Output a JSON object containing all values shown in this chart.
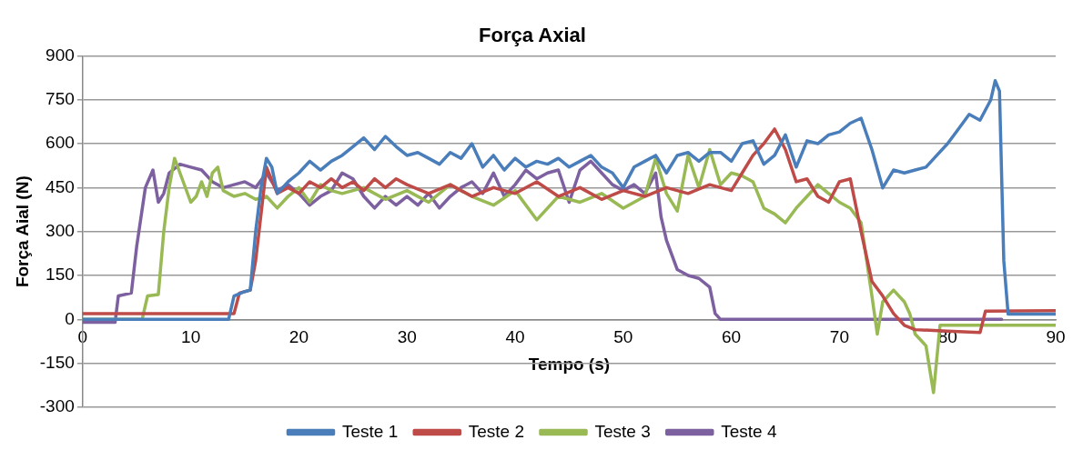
{
  "chart_data": {
    "type": "line",
    "title": "Força Axial",
    "xlabel": "Tempo (s)",
    "ylabel": "Força Aial (N)",
    "xlim": [
      0,
      90
    ],
    "xticks": [
      0,
      10,
      20,
      30,
      40,
      50,
      60,
      70,
      80,
      90
    ],
    "ylim": [
      -300,
      900
    ],
    "yticks": [
      -300,
      -150,
      0,
      150,
      300,
      450,
      600,
      750,
      900
    ],
    "grid": "y",
    "legend": "bottom",
    "marker": "none",
    "line_style": "solid",
    "series": [
      {
        "name": "Teste 1",
        "color": "#4a7ebb",
        "x": [
          0,
          13.5,
          14,
          15,
          15.5,
          16,
          16.5,
          17,
          17.5,
          18,
          19,
          20,
          21,
          22,
          23,
          24,
          25,
          26,
          27,
          28,
          29,
          30,
          31,
          32,
          33,
          34,
          35,
          36,
          37,
          38,
          39,
          40,
          41,
          42,
          43,
          44,
          45,
          46,
          47,
          48,
          49,
          50,
          51,
          52,
          53,
          54,
          55,
          56,
          57,
          58,
          59,
          60,
          61,
          62,
          63,
          64,
          65,
          66,
          67,
          68,
          69,
          70,
          71,
          72,
          73,
          74,
          75,
          76,
          77,
          78,
          79,
          80,
          81,
          82,
          83,
          84,
          84.4,
          84.8,
          85.2,
          85.6,
          90
        ],
        "values": [
          0,
          0,
          80,
          95,
          100,
          300,
          450,
          550,
          520,
          430,
          470,
          500,
          540,
          510,
          540,
          560,
          590,
          620,
          580,
          625,
          590,
          560,
          570,
          550,
          530,
          570,
          550,
          600,
          520,
          560,
          510,
          550,
          520,
          540,
          530,
          550,
          520,
          540,
          560,
          520,
          500,
          450,
          520,
          540,
          560,
          500,
          560,
          570,
          540,
          570,
          570,
          540,
          600,
          610,
          530,
          560,
          630,
          520,
          610,
          600,
          630,
          640,
          670,
          687,
          580,
          449,
          510,
          500,
          510,
          520,
          560,
          600,
          650,
          700,
          680,
          750,
          815,
          780,
          200,
          18,
          18
        ]
      },
      {
        "name": "Teste 2",
        "color": "#be4b48",
        "x": [
          0,
          14,
          14.5,
          15.5,
          16,
          17,
          18,
          19,
          20,
          21,
          22,
          23,
          24,
          25,
          26,
          27,
          28,
          29,
          30,
          32,
          34,
          36,
          38,
          40,
          42,
          44,
          46,
          48,
          50,
          52,
          54,
          56,
          58,
          60,
          61,
          62,
          63,
          64,
          65,
          66,
          67,
          68,
          69,
          70,
          71,
          72,
          73,
          74,
          75,
          76,
          77,
          80,
          83,
          83.5,
          90
        ],
        "values": [
          20,
          20,
          90,
          100,
          200,
          520,
          430,
          450,
          430,
          470,
          450,
          480,
          450,
          470,
          440,
          480,
          450,
          480,
          460,
          430,
          460,
          420,
          450,
          430,
          470,
          420,
          450,
          410,
          440,
          420,
          450,
          430,
          460,
          440,
          500,
          560,
          600,
          650,
          580,
          470,
          480,
          420,
          400,
          470,
          480,
          300,
          130,
          80,
          20,
          -20,
          -35,
          -40,
          -45,
          28,
          30
        ]
      },
      {
        "name": "Teste 3",
        "color": "#98b954",
        "x": [
          0,
          5.5,
          6,
          7,
          7.5,
          8,
          8.5,
          9,
          10,
          10.5,
          11,
          11.5,
          12,
          12.5,
          13,
          14,
          15,
          16,
          17,
          18,
          19,
          20,
          21,
          22,
          23,
          24,
          26,
          28,
          30,
          32,
          34,
          36,
          38,
          40,
          42,
          44,
          46,
          48,
          50,
          52,
          53,
          54,
          55,
          56,
          57,
          58,
          59,
          60,
          61,
          62,
          63,
          64,
          65,
          66,
          67,
          68,
          69,
          70,
          71,
          72,
          73,
          73.5,
          74,
          75,
          76,
          76.5,
          77,
          78,
          78.7,
          79.3,
          90
        ],
        "values": [
          0,
          0,
          80,
          85,
          300,
          450,
          550,
          500,
          400,
          420,
          470,
          420,
          500,
          520,
          440,
          420,
          430,
          410,
          420,
          380,
          420,
          450,
          400,
          460,
          440,
          430,
          450,
          410,
          440,
          400,
          460,
          420,
          390,
          440,
          340,
          420,
          400,
          430,
          380,
          420,
          550,
          430,
          370,
          560,
          450,
          580,
          460,
          500,
          490,
          470,
          380,
          360,
          330,
          380,
          420,
          460,
          430,
          400,
          380,
          330,
          80,
          -50,
          60,
          100,
          60,
          20,
          -50,
          -90,
          -250,
          -20,
          -20
        ]
      },
      {
        "name": "Teste 4",
        "color": "#7d60a0",
        "x": [
          0,
          3,
          3.3,
          4.5,
          5,
          5.8,
          6.5,
          7,
          7.5,
          8,
          9,
          10,
          11,
          12,
          13,
          14,
          15,
          16,
          17,
          18,
          19,
          20,
          21,
          22,
          23,
          24,
          25,
          26,
          27,
          28,
          29,
          30,
          31,
          32,
          33,
          34,
          35,
          36,
          37,
          38,
          39,
          40,
          41,
          42,
          43,
          44,
          45,
          46,
          47,
          48,
          49,
          50,
          51,
          52,
          53,
          53.5,
          54,
          55,
          56,
          57,
          58,
          58.5,
          59,
          85
        ],
        "values": [
          -10,
          -10,
          80,
          90,
          250,
          450,
          510,
          400,
          430,
          500,
          530,
          520,
          510,
          470,
          450,
          460,
          470,
          450,
          500,
          440,
          460,
          430,
          390,
          420,
          440,
          500,
          480,
          420,
          380,
          420,
          390,
          420,
          390,
          430,
          380,
          420,
          450,
          470,
          430,
          500,
          420,
          460,
          510,
          480,
          500,
          510,
          400,
          510,
          540,
          500,
          460,
          440,
          460,
          430,
          500,
          350,
          270,
          170,
          150,
          140,
          110,
          20,
          0,
          0
        ]
      }
    ]
  }
}
